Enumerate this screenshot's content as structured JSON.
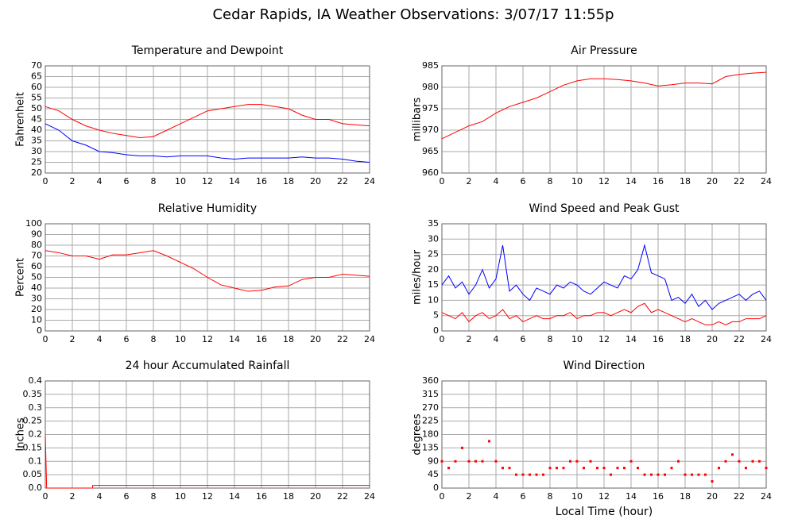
{
  "title": "Cedar Rapids, IA Weather Observations: 3/07/17 11:55p",
  "chart_data": [
    {
      "type": "line",
      "title": "Temperature and Dewpoint",
      "ylabel": "Fahrenheit",
      "x": [
        0,
        1,
        2,
        3,
        4,
        5,
        6,
        7,
        8,
        9,
        10,
        11,
        12,
        13,
        14,
        15,
        16,
        17,
        18,
        19,
        20,
        21,
        22,
        23,
        24
      ],
      "series": [
        {
          "color": "#ff0000",
          "values": [
            51,
            49,
            45,
            42,
            40,
            38.5,
            37.5,
            36.5,
            37,
            40,
            43,
            46,
            49,
            50,
            51,
            52,
            52,
            51,
            50,
            47,
            45,
            45,
            43,
            42.5,
            42
          ]
        },
        {
          "color": "#0000ff",
          "values": [
            43,
            40,
            35,
            33,
            30,
            29.5,
            28.5,
            28,
            28,
            27.5,
            28,
            28,
            28,
            27,
            26.5,
            27,
            27,
            27,
            27,
            27.5,
            27,
            27,
            26.5,
            25.5,
            25
          ]
        }
      ],
      "xlim": [
        0,
        24
      ],
      "xticks": [
        0,
        2,
        4,
        6,
        8,
        10,
        12,
        14,
        16,
        18,
        20,
        22,
        24
      ],
      "ylim": [
        20,
        70
      ],
      "yticks": [
        20,
        25,
        30,
        35,
        40,
        45,
        50,
        55,
        60,
        65,
        70
      ],
      "grid": true
    },
    {
      "type": "line",
      "title": "Air Pressure",
      "ylabel": "millibars",
      "x": [
        0,
        1,
        2,
        3,
        4,
        5,
        6,
        7,
        8,
        9,
        10,
        11,
        12,
        13,
        14,
        15,
        16,
        17,
        18,
        19,
        20,
        21,
        22,
        23,
        24
      ],
      "series": [
        {
          "color": "#ff0000",
          "values": [
            968,
            969.5,
            971,
            972,
            974,
            975.5,
            976.5,
            977.5,
            979,
            980.5,
            981.5,
            982,
            982,
            981.8,
            981.5,
            981,
            980.3,
            980.6,
            981,
            981,
            980.8,
            982.5,
            983,
            983.3,
            983.5
          ]
        }
      ],
      "xlim": [
        0,
        24
      ],
      "xticks": [
        0,
        2,
        4,
        6,
        8,
        10,
        12,
        14,
        16,
        18,
        20,
        22,
        24
      ],
      "ylim": [
        960,
        985
      ],
      "yticks": [
        960,
        965,
        970,
        975,
        980,
        985
      ],
      "grid": true
    },
    {
      "type": "line",
      "title": "Relative Humidity",
      "ylabel": "Percent",
      "x": [
        0,
        1,
        2,
        3,
        4,
        5,
        6,
        7,
        8,
        9,
        10,
        11,
        12,
        13,
        14,
        15,
        16,
        17,
        18,
        19,
        20,
        21,
        22,
        23,
        24
      ],
      "series": [
        {
          "color": "#ff0000",
          "values": [
            75,
            73,
            70,
            70,
            67,
            71,
            71,
            73,
            75,
            70,
            64,
            58,
            50,
            43,
            40,
            37,
            38,
            41,
            42,
            48,
            50,
            50,
            53,
            52,
            51
          ]
        }
      ],
      "xlim": [
        0,
        24
      ],
      "xticks": [
        0,
        2,
        4,
        6,
        8,
        10,
        12,
        14,
        16,
        18,
        20,
        22,
        24
      ],
      "ylim": [
        0,
        100
      ],
      "yticks": [
        0,
        10,
        20,
        30,
        40,
        50,
        60,
        70,
        80,
        90,
        100
      ],
      "grid": true
    },
    {
      "type": "line",
      "title": "Wind Speed and Peak Gust",
      "ylabel": "miles/hour",
      "x": [
        0,
        0.5,
        1,
        1.5,
        2,
        2.5,
        3,
        3.5,
        4,
        4.5,
        5,
        5.5,
        6,
        6.5,
        7,
        7.5,
        8,
        8.5,
        9,
        9.5,
        10,
        10.5,
        11,
        11.5,
        12,
        12.5,
        13,
        13.5,
        14,
        14.5,
        15,
        15.5,
        16,
        16.5,
        17,
        17.5,
        18,
        18.5,
        19,
        19.5,
        20,
        20.5,
        21,
        21.5,
        22,
        22.5,
        23,
        23.5,
        24
      ],
      "series": [
        {
          "color": "#0000ff",
          "values": [
            15,
            18,
            14,
            16,
            12,
            15,
            20,
            14,
            17,
            28,
            13,
            15,
            12,
            10,
            14,
            13,
            12,
            15,
            14,
            16,
            15,
            13,
            12,
            14,
            16,
            15,
            14,
            18,
            17,
            20,
            28,
            19,
            18,
            17,
            10,
            11,
            9,
            12,
            8,
            10,
            7,
            9,
            10,
            11,
            12,
            10,
            12,
            13,
            10
          ]
        },
        {
          "color": "#ff0000",
          "values": [
            6,
            5,
            4,
            6,
            3,
            5,
            6,
            4,
            5,
            7,
            4,
            5,
            3,
            4,
            5,
            4,
            4,
            5,
            5,
            6,
            4,
            5,
            5,
            6,
            6,
            5,
            6,
            7,
            6,
            8,
            9,
            6,
            7,
            6,
            5,
            4,
            3,
            4,
            3,
            2,
            2,
            3,
            2,
            3,
            3,
            4,
            4,
            4,
            5
          ]
        }
      ],
      "xlim": [
        0,
        24
      ],
      "xticks": [
        0,
        2,
        4,
        6,
        8,
        10,
        12,
        14,
        16,
        18,
        20,
        22,
        24
      ],
      "ylim": [
        0,
        35
      ],
      "yticks": [
        0,
        5,
        10,
        15,
        20,
        25,
        30,
        35
      ],
      "grid": true
    },
    {
      "type": "line",
      "title": "24 hour Accumulated Rainfall",
      "ylabel": "Inches",
      "x": [
        0,
        0.1,
        3.5,
        3.5,
        24
      ],
      "series": [
        {
          "color": "#ff0000",
          "values": [
            0.2,
            0,
            0,
            0.01,
            0.01
          ]
        }
      ],
      "xlim": [
        0,
        24
      ],
      "xticks": [
        0,
        2,
        4,
        6,
        8,
        10,
        12,
        14,
        16,
        18,
        20,
        22,
        24
      ],
      "ylim": [
        0,
        0.4
      ],
      "yticks": [
        {
          "value": 0,
          "label": "0.0"
        },
        0.05,
        0.1,
        0.15,
        0.2,
        0.25,
        0.3,
        0.35,
        0.4
      ],
      "grid": true
    },
    {
      "type": "scatter",
      "title": "Wind Direction",
      "ylabel": "degrees",
      "xlabel": "Local Time (hour)",
      "x": [
        0,
        0.5,
        1,
        1.5,
        2,
        2.5,
        3,
        3.5,
        4,
        4.5,
        5,
        5.5,
        6,
        6.5,
        7,
        7.5,
        8,
        8.5,
        9,
        9.5,
        10,
        10.5,
        11,
        11.5,
        12,
        12.5,
        13,
        13.5,
        14,
        14.5,
        15,
        15.5,
        16,
        16.5,
        17,
        17.5,
        18,
        18.5,
        19,
        19.5,
        20,
        20.5,
        21,
        21.5,
        22,
        22.5,
        23,
        23.5,
        24
      ],
      "series": [
        {
          "color": "#ff0000",
          "values": [
            90,
            67.5,
            90,
            135,
            90,
            90,
            90,
            157.5,
            90,
            67.5,
            67.5,
            45,
            45,
            45,
            45,
            45,
            67.5,
            67.5,
            67.5,
            90,
            90,
            67.5,
            90,
            67.5,
            67.5,
            45,
            67.5,
            67.5,
            90,
            67.5,
            45,
            45,
            45,
            45,
            67.5,
            90,
            45,
            45,
            45,
            45,
            22.5,
            67.5,
            90,
            112.5,
            90,
            67.5,
            90,
            90,
            67.5
          ]
        }
      ],
      "xlim": [
        0,
        24
      ],
      "xticks": [
        0,
        2,
        4,
        6,
        8,
        10,
        12,
        14,
        16,
        18,
        20,
        22,
        24
      ],
      "ylim": [
        0,
        360
      ],
      "yticks": [
        0,
        45,
        90,
        135,
        180,
        225,
        270,
        315,
        360
      ],
      "grid": true
    }
  ]
}
